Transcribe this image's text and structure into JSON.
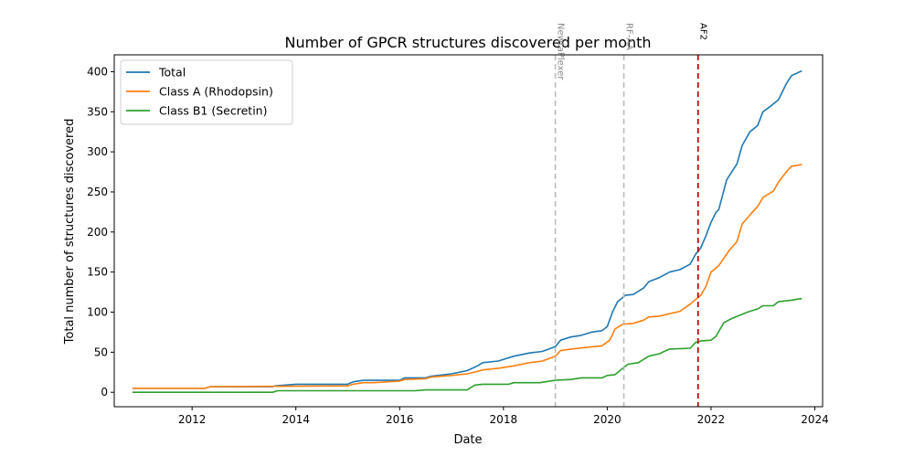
{
  "chart_data": {
    "type": "line",
    "title": "Number of GPCR structures discovered per month",
    "xlabel": "Date",
    "ylabel": "Total number of structures discovered",
    "xlim": [
      2010.5,
      2024.15
    ],
    "ylim": [
      -18,
      421
    ],
    "x_ticks": [
      2012,
      2014,
      2016,
      2018,
      2020,
      2022,
      2024
    ],
    "x_tick_labels": [
      "2012",
      "2014",
      "2016",
      "2018",
      "2020",
      "2022",
      "2024"
    ],
    "y_ticks": [
      0,
      50,
      100,
      150,
      200,
      250,
      300,
      350,
      400
    ],
    "y_tick_labels": [
      "0",
      "50",
      "100",
      "150",
      "200",
      "250",
      "300",
      "350",
      "400"
    ],
    "grid": false,
    "legend_position": "top-left",
    "series": [
      {
        "name": "Total",
        "color": "#1f77b4",
        "points": [
          [
            2010.85,
            5
          ],
          [
            2012.25,
            5
          ],
          [
            2012.35,
            7
          ],
          [
            2013.55,
            7
          ],
          [
            2013.6,
            8
          ],
          [
            2013.8,
            9
          ],
          [
            2014.0,
            10
          ],
          [
            2014.5,
            10
          ],
          [
            2015.0,
            10
          ],
          [
            2015.1,
            13
          ],
          [
            2015.3,
            15
          ],
          [
            2015.5,
            15
          ],
          [
            2016.0,
            15
          ],
          [
            2016.1,
            18
          ],
          [
            2016.5,
            18
          ],
          [
            2016.6,
            20
          ],
          [
            2017.0,
            23
          ],
          [
            2017.3,
            27
          ],
          [
            2017.5,
            33
          ],
          [
            2017.6,
            37
          ],
          [
            2017.9,
            39
          ],
          [
            2018.2,
            45
          ],
          [
            2018.5,
            49
          ],
          [
            2018.75,
            51
          ],
          [
            2019.0,
            57
          ],
          [
            2019.1,
            65
          ],
          [
            2019.3,
            69
          ],
          [
            2019.5,
            71
          ],
          [
            2019.7,
            75
          ],
          [
            2019.9,
            77
          ],
          [
            2020.0,
            82
          ],
          [
            2020.1,
            100
          ],
          [
            2020.2,
            113
          ],
          [
            2020.35,
            121
          ],
          [
            2020.5,
            122
          ],
          [
            2020.7,
            130
          ],
          [
            2020.8,
            138
          ],
          [
            2021.0,
            143
          ],
          [
            2021.2,
            150
          ],
          [
            2021.4,
            153
          ],
          [
            2021.6,
            160
          ],
          [
            2021.7,
            172
          ],
          [
            2021.8,
            180
          ],
          [
            2021.9,
            195
          ],
          [
            2022.0,
            212
          ],
          [
            2022.1,
            225
          ],
          [
            2022.15,
            228
          ],
          [
            2022.3,
            265
          ],
          [
            2022.5,
            285
          ],
          [
            2022.6,
            308
          ],
          [
            2022.75,
            325
          ],
          [
            2022.9,
            333
          ],
          [
            2023.0,
            350
          ],
          [
            2023.15,
            357
          ],
          [
            2023.3,
            365
          ],
          [
            2023.45,
            385
          ],
          [
            2023.55,
            395
          ],
          [
            2023.75,
            401
          ]
        ]
      },
      {
        "name": "Class A (Rhodopsin)",
        "color": "#ff7f0e",
        "points": [
          [
            2010.85,
            5
          ],
          [
            2012.25,
            5
          ],
          [
            2012.35,
            7
          ],
          [
            2015.0,
            8
          ],
          [
            2015.1,
            10
          ],
          [
            2015.3,
            12
          ],
          [
            2015.5,
            12
          ],
          [
            2016.0,
            14
          ],
          [
            2016.1,
            16
          ],
          [
            2016.5,
            17
          ],
          [
            2016.6,
            19
          ],
          [
            2017.0,
            21
          ],
          [
            2017.3,
            23
          ],
          [
            2017.5,
            26
          ],
          [
            2017.6,
            28
          ],
          [
            2017.9,
            30
          ],
          [
            2018.2,
            33
          ],
          [
            2018.5,
            37
          ],
          [
            2018.75,
            39
          ],
          [
            2019.0,
            45
          ],
          [
            2019.1,
            52
          ],
          [
            2019.3,
            54
          ],
          [
            2019.6,
            56
          ],
          [
            2019.9,
            58
          ],
          [
            2020.05,
            65
          ],
          [
            2020.15,
            79
          ],
          [
            2020.3,
            85
          ],
          [
            2020.5,
            86
          ],
          [
            2020.7,
            90
          ],
          [
            2020.8,
            94
          ],
          [
            2021.0,
            95
          ],
          [
            2021.2,
            98
          ],
          [
            2021.4,
            101
          ],
          [
            2021.6,
            110
          ],
          [
            2021.8,
            121
          ],
          [
            2021.9,
            132
          ],
          [
            2022.0,
            150
          ],
          [
            2022.15,
            158
          ],
          [
            2022.35,
            177
          ],
          [
            2022.5,
            188
          ],
          [
            2022.6,
            210
          ],
          [
            2022.8,
            225
          ],
          [
            2022.9,
            232
          ],
          [
            2023.0,
            243
          ],
          [
            2023.2,
            251
          ],
          [
            2023.3,
            262
          ],
          [
            2023.45,
            275
          ],
          [
            2023.55,
            282
          ],
          [
            2023.75,
            284
          ]
        ]
      },
      {
        "name": "Class B1 (Secretin)",
        "color": "#2ca02c",
        "points": [
          [
            2010.85,
            0
          ],
          [
            2013.55,
            0
          ],
          [
            2013.65,
            2
          ],
          [
            2016.3,
            2
          ],
          [
            2016.5,
            3
          ],
          [
            2017.3,
            3
          ],
          [
            2017.45,
            9
          ],
          [
            2017.6,
            10
          ],
          [
            2018.1,
            10
          ],
          [
            2018.2,
            12
          ],
          [
            2018.7,
            12
          ],
          [
            2018.9,
            14
          ],
          [
            2019.0,
            15
          ],
          [
            2019.3,
            16
          ],
          [
            2019.5,
            18
          ],
          [
            2019.9,
            18
          ],
          [
            2020.0,
            21
          ],
          [
            2020.15,
            22
          ],
          [
            2020.3,
            30
          ],
          [
            2020.4,
            35
          ],
          [
            2020.6,
            37
          ],
          [
            2020.8,
            45
          ],
          [
            2021.0,
            48
          ],
          [
            2021.2,
            54
          ],
          [
            2021.6,
            55
          ],
          [
            2021.7,
            62
          ],
          [
            2021.8,
            64
          ],
          [
            2022.0,
            65
          ],
          [
            2022.1,
            70
          ],
          [
            2022.15,
            76
          ],
          [
            2022.25,
            87
          ],
          [
            2022.4,
            92
          ],
          [
            2022.55,
            96
          ],
          [
            2022.7,
            100
          ],
          [
            2022.9,
            104
          ],
          [
            2023.0,
            108
          ],
          [
            2023.2,
            108
          ],
          [
            2023.3,
            113
          ],
          [
            2023.55,
            115
          ],
          [
            2023.75,
            117
          ]
        ]
      }
    ],
    "vertical_lines": [
      {
        "x": 2019.0,
        "label": "NewtaPlexer",
        "color": "#bbbbbb",
        "text_color": "#888888"
      },
      {
        "x": 2020.32,
        "label": "RF-AA",
        "color": "#bbbbbb",
        "text_color": "#888888"
      },
      {
        "x": 2021.75,
        "label": "AF2",
        "color": "#cc0000",
        "text_color": "#000000"
      }
    ]
  }
}
